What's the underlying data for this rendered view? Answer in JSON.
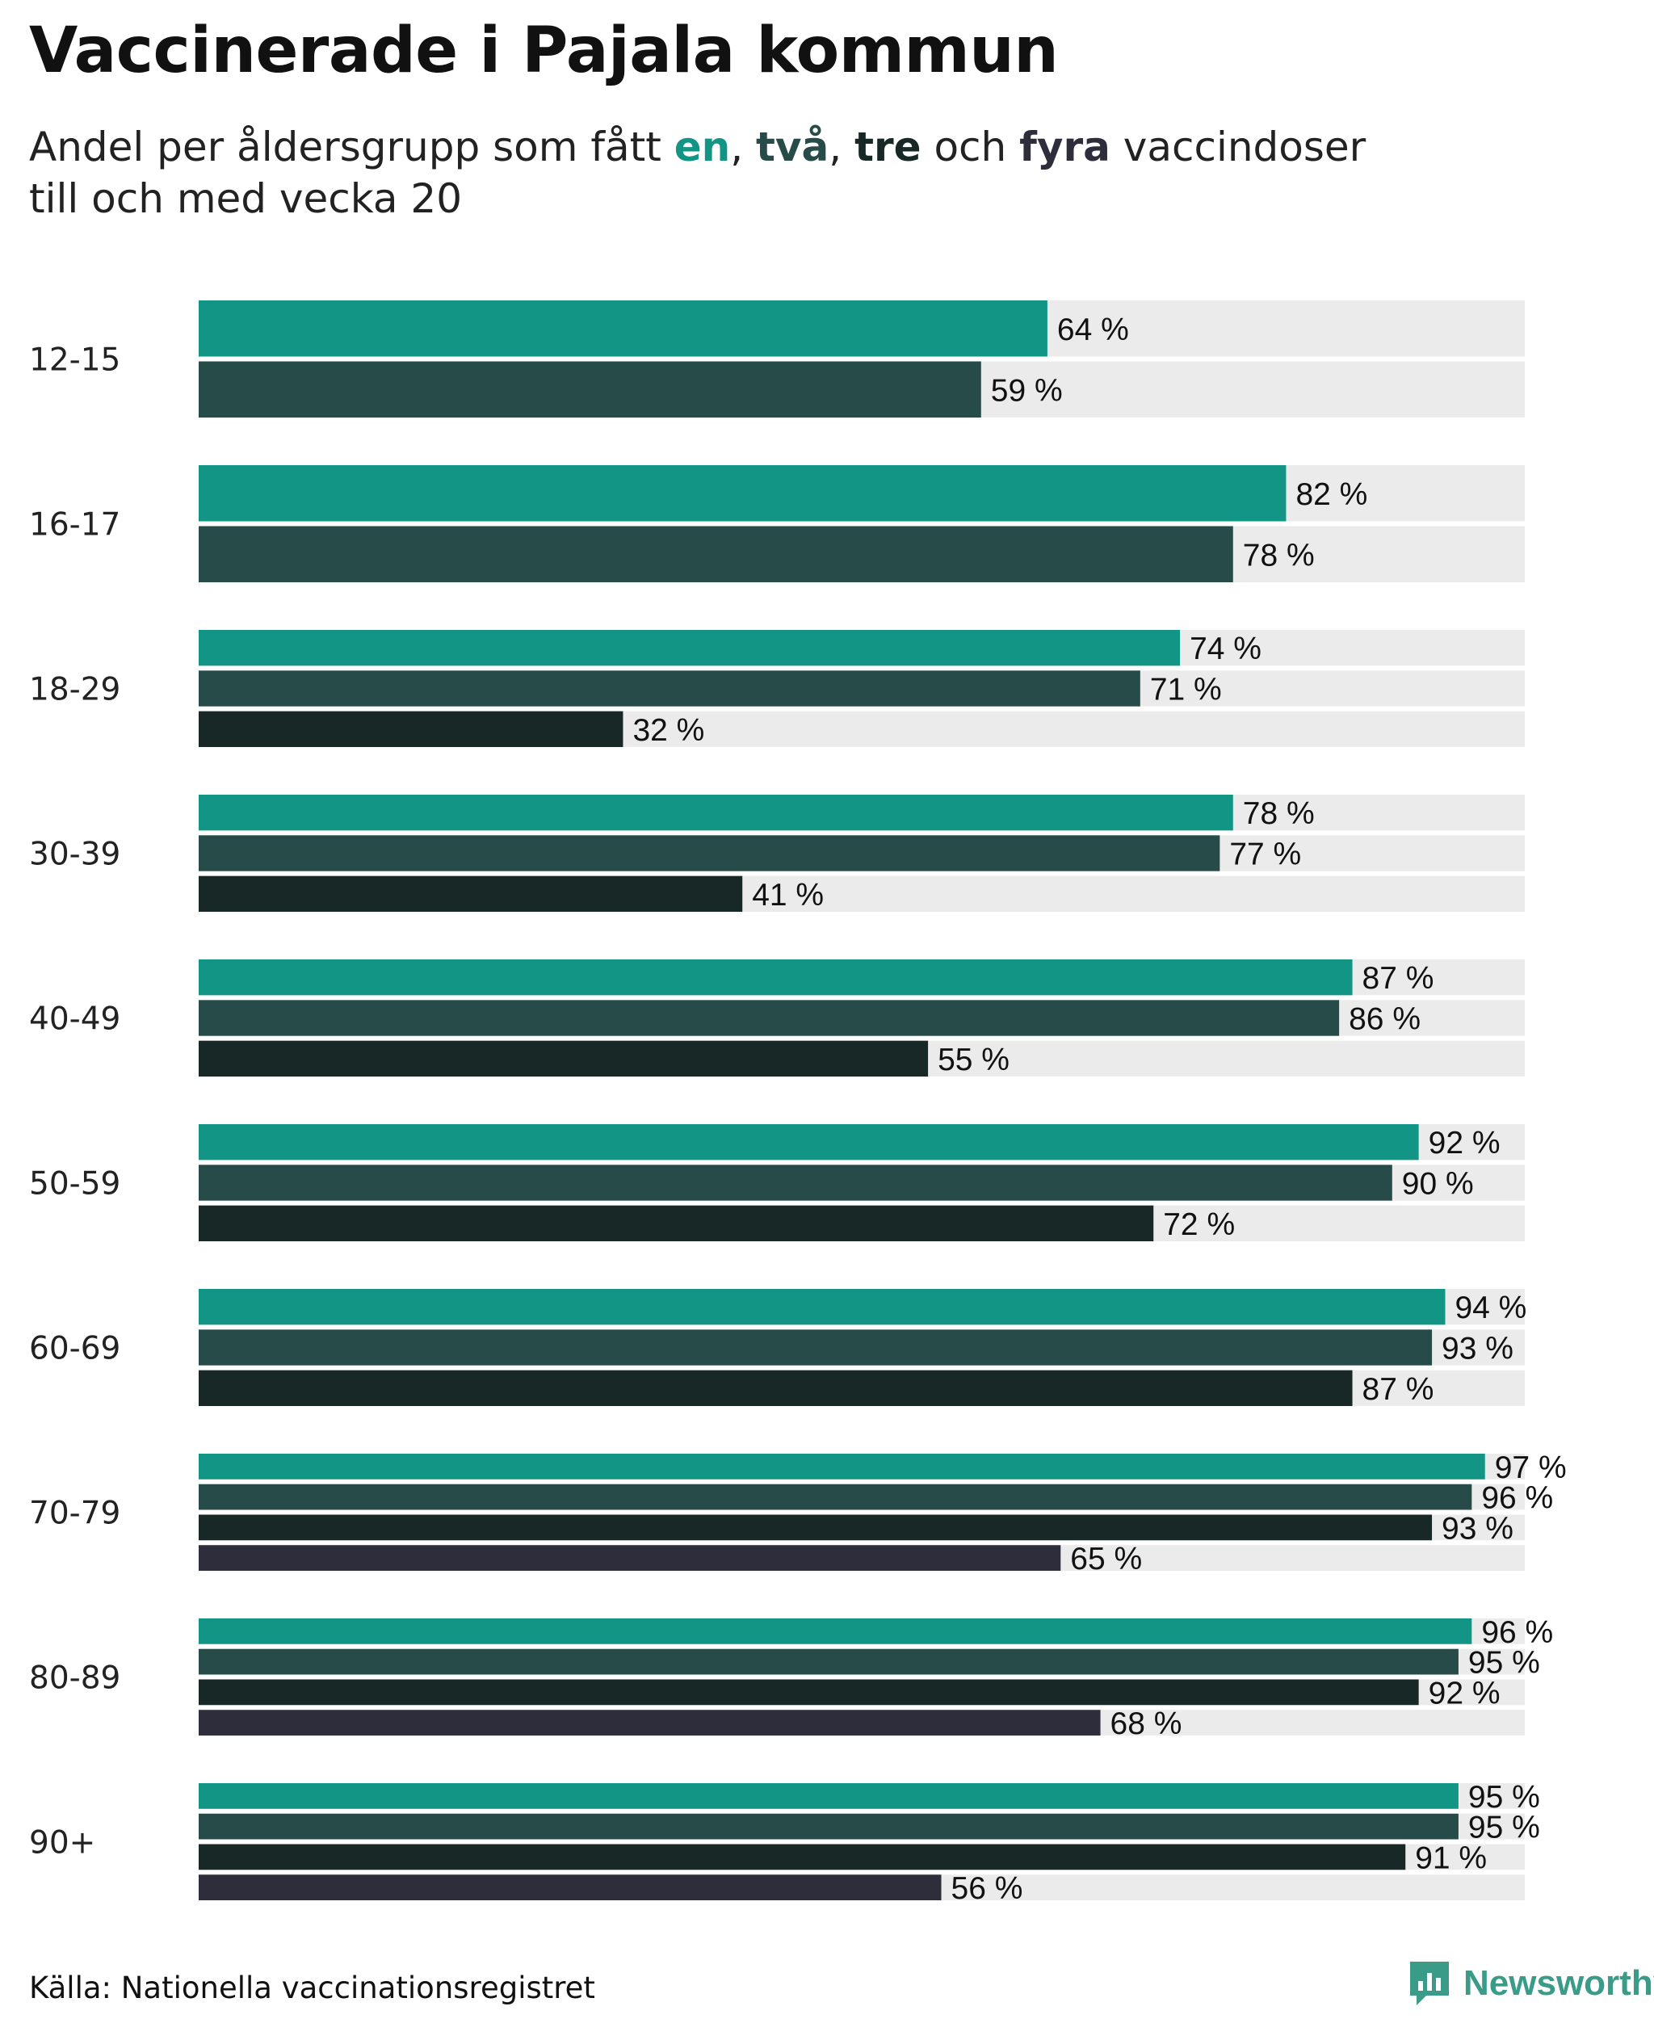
{
  "title": "Vaccinerade i Pajala kommun",
  "subtitle": {
    "prefix": "Andel per åldersgrupp som fått ",
    "dose1": "en",
    "sep1": ", ",
    "dose2": "två",
    "sep2": ", ",
    "dose3": "tre",
    "mid": " och ",
    "dose4": "fyra",
    "suffix": " vaccindoser",
    "line2": "till och med vecka 20"
  },
  "colors": {
    "dose1": "#139585",
    "dose2": "#264b48",
    "dose3": "#172826",
    "dose4": "#2e2d3b",
    "track": "#ebebeb"
  },
  "source": "Källa: Nationella vaccinationsregistret",
  "brand": "Newsworthy",
  "chart_data": {
    "type": "bar",
    "orientation": "horizontal",
    "value_suffix": " %",
    "xlim": [
      0,
      100
    ],
    "series_names": [
      "en dos",
      "två doser",
      "tre doser",
      "fyra doser"
    ],
    "categories": [
      "12-15",
      "16-17",
      "18-29",
      "30-39",
      "40-49",
      "50-59",
      "60-69",
      "70-79",
      "80-89",
      "90+"
    ],
    "groups": [
      {
        "label": "12-15",
        "values": [
          64,
          59
        ]
      },
      {
        "label": "16-17",
        "values": [
          82,
          78
        ]
      },
      {
        "label": "18-29",
        "values": [
          74,
          71,
          32
        ]
      },
      {
        "label": "30-39",
        "values": [
          78,
          77,
          41
        ]
      },
      {
        "label": "40-49",
        "values": [
          87,
          86,
          55
        ]
      },
      {
        "label": "50-59",
        "values": [
          92,
          90,
          72
        ]
      },
      {
        "label": "60-69",
        "values": [
          94,
          93,
          87
        ]
      },
      {
        "label": "70-79",
        "values": [
          97,
          96,
          93,
          65
        ]
      },
      {
        "label": "80-89",
        "values": [
          96,
          95,
          92,
          68
        ]
      },
      {
        "label": "90+",
        "values": [
          95,
          95,
          91,
          56
        ]
      }
    ]
  }
}
